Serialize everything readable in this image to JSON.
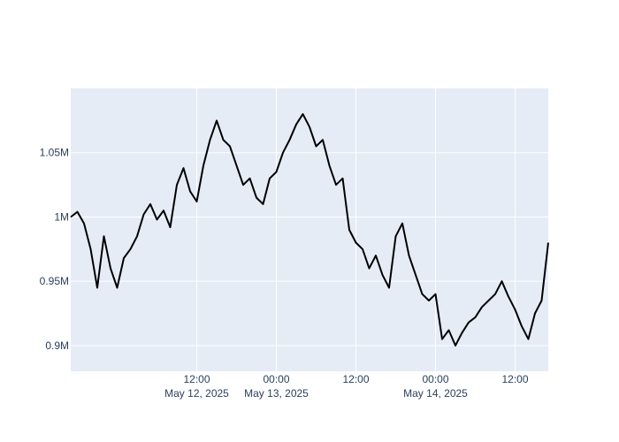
{
  "chart_data": {
    "type": "line",
    "title": "",
    "xlabel": "",
    "ylabel": "",
    "x_range": [
      "2025-05-11 17:00",
      "2025-05-14 17:00"
    ],
    "y_range": [
      880000,
      1100000
    ],
    "grid": true,
    "legend": "none",
    "colors": {
      "plot_bg": "#e5ecf6",
      "grid": "#ffffff",
      "line": "#000000",
      "tick_text": "#2a3f5f"
    },
    "x_ticks": [
      {
        "value": "2025-05-12 12:00",
        "label": "12:00",
        "sublabel": "May 12, 2025"
      },
      {
        "value": "2025-05-13 00:00",
        "label": "00:00",
        "sublabel": "May 13, 2025"
      },
      {
        "value": "2025-05-13 12:00",
        "label": "12:00",
        "sublabel": ""
      },
      {
        "value": "2025-05-14 00:00",
        "label": "00:00",
        "sublabel": "May 14, 2025"
      },
      {
        "value": "2025-05-14 12:00",
        "label": "12:00",
        "sublabel": ""
      }
    ],
    "y_ticks": [
      {
        "value": 900000,
        "label": "0.9M"
      },
      {
        "value": 950000,
        "label": "0.95M"
      },
      {
        "value": 1000000,
        "label": "1M"
      },
      {
        "value": 1050000,
        "label": "1.05M"
      }
    ],
    "series": [
      {
        "x": [
          "2025-05-11 17:00",
          "2025-05-11 18:00",
          "2025-05-11 19:00",
          "2025-05-11 20:00",
          "2025-05-11 21:00",
          "2025-05-11 22:00",
          "2025-05-11 23:00",
          "2025-05-12 00:00",
          "2025-05-12 01:00",
          "2025-05-12 02:00",
          "2025-05-12 03:00",
          "2025-05-12 04:00",
          "2025-05-12 05:00",
          "2025-05-12 06:00",
          "2025-05-12 07:00",
          "2025-05-12 08:00",
          "2025-05-12 09:00",
          "2025-05-12 10:00",
          "2025-05-12 11:00",
          "2025-05-12 12:00",
          "2025-05-12 13:00",
          "2025-05-12 14:00",
          "2025-05-12 15:00",
          "2025-05-12 16:00",
          "2025-05-12 17:00",
          "2025-05-12 18:00",
          "2025-05-12 19:00",
          "2025-05-12 20:00",
          "2025-05-12 21:00",
          "2025-05-12 22:00",
          "2025-05-12 23:00",
          "2025-05-13 00:00",
          "2025-05-13 01:00",
          "2025-05-13 02:00",
          "2025-05-13 03:00",
          "2025-05-13 04:00",
          "2025-05-13 05:00",
          "2025-05-13 06:00",
          "2025-05-13 07:00",
          "2025-05-13 08:00",
          "2025-05-13 09:00",
          "2025-05-13 10:00",
          "2025-05-13 11:00",
          "2025-05-13 12:00",
          "2025-05-13 13:00",
          "2025-05-13 14:00",
          "2025-05-13 15:00",
          "2025-05-13 16:00",
          "2025-05-13 17:00",
          "2025-05-13 18:00",
          "2025-05-13 19:00",
          "2025-05-13 20:00",
          "2025-05-13 21:00",
          "2025-05-13 22:00",
          "2025-05-13 23:00",
          "2025-05-14 00:00",
          "2025-05-14 01:00",
          "2025-05-14 02:00",
          "2025-05-14 03:00",
          "2025-05-14 04:00",
          "2025-05-14 05:00",
          "2025-05-14 06:00",
          "2025-05-14 07:00",
          "2025-05-14 08:00",
          "2025-05-14 09:00",
          "2025-05-14 10:00",
          "2025-05-14 11:00",
          "2025-05-14 12:00",
          "2025-05-14 13:00",
          "2025-05-14 14:00",
          "2025-05-14 15:00",
          "2025-05-14 16:00",
          "2025-05-14 17:00"
        ],
        "values": [
          1000000,
          1004000,
          995000,
          975000,
          945000,
          985000,
          960000,
          945000,
          968000,
          975000,
          985000,
          1002000,
          1010000,
          998000,
          1005000,
          992000,
          1025000,
          1038000,
          1020000,
          1012000,
          1040000,
          1060000,
          1075000,
          1060000,
          1055000,
          1040000,
          1025000,
          1030000,
          1015000,
          1010000,
          1030000,
          1035000,
          1050000,
          1060000,
          1072000,
          1080000,
          1070000,
          1055000,
          1060000,
          1040000,
          1025000,
          1030000,
          990000,
          980000,
          975000,
          960000,
          970000,
          955000,
          945000,
          985000,
          995000,
          970000,
          955000,
          940000,
          935000,
          940000,
          905000,
          912000,
          900000,
          910000,
          918000,
          922000,
          930000,
          935000,
          940000,
          950000,
          938000,
          928000,
          915000,
          905000,
          925000,
          935000,
          980000
        ]
      }
    ]
  }
}
